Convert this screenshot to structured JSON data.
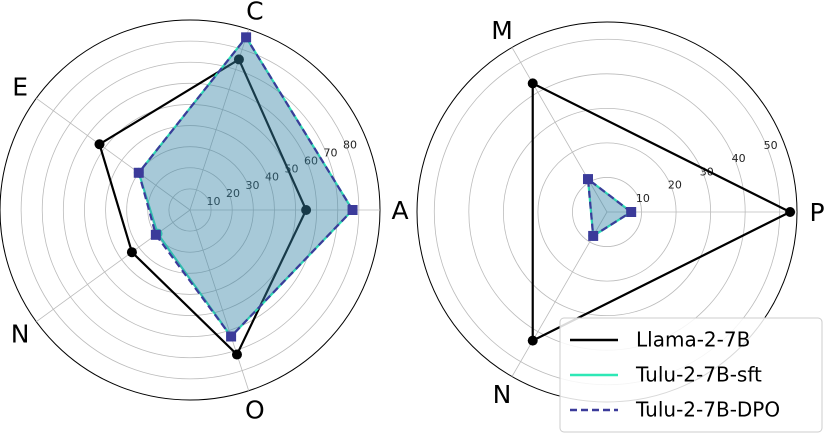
{
  "chart_data": [
    {
      "type": "radar",
      "categories": [
        "A",
        "C",
        "E",
        "N",
        "O"
      ],
      "rlim": [
        0,
        90
      ],
      "rticks": [
        10,
        20,
        30,
        40,
        50,
        60,
        70,
        80
      ],
      "grid": true,
      "series": [
        {
          "name": "Llama-2-7B",
          "color": "#000000",
          "linestyle": "solid",
          "marker": "circle",
          "values": [
            55,
            75,
            53,
            34,
            72
          ]
        },
        {
          "name": "Tulu-2-7B-sft",
          "color": "#2ee8b6",
          "linestyle": "solid",
          "marker": "circle",
          "fill": true,
          "alpha": 0.25,
          "values": [
            77,
            86,
            30,
            19,
            63
          ]
        },
        {
          "name": "Tulu-2-7B-DPO",
          "color": "#3b3b9a",
          "linestyle": "dashed",
          "marker": "square",
          "fill": true,
          "alpha": 0.25,
          "values": [
            77,
            86,
            30,
            20,
            63
          ]
        }
      ]
    },
    {
      "type": "radar",
      "categories": [
        "P",
        "M",
        "N"
      ],
      "rlim": [
        0,
        55
      ],
      "rticks": [
        10,
        20,
        30,
        40,
        50
      ],
      "grid": true,
      "legend": "lower right",
      "series": [
        {
          "name": "Llama-2-7B",
          "color": "#000000",
          "linestyle": "solid",
          "marker": "circle",
          "values": [
            53,
            43,
            43
          ]
        },
        {
          "name": "Tulu-2-7B-sft",
          "color": "#2ee8b6",
          "linestyle": "solid",
          "marker": "circle",
          "fill": true,
          "alpha": 0.25,
          "values": [
            7,
            11,
            8
          ]
        },
        {
          "name": "Tulu-2-7B-DPO",
          "color": "#3b3b9a",
          "linestyle": "dashed",
          "marker": "square",
          "fill": true,
          "alpha": 0.25,
          "values": [
            7,
            11,
            8
          ]
        }
      ]
    }
  ]
}
